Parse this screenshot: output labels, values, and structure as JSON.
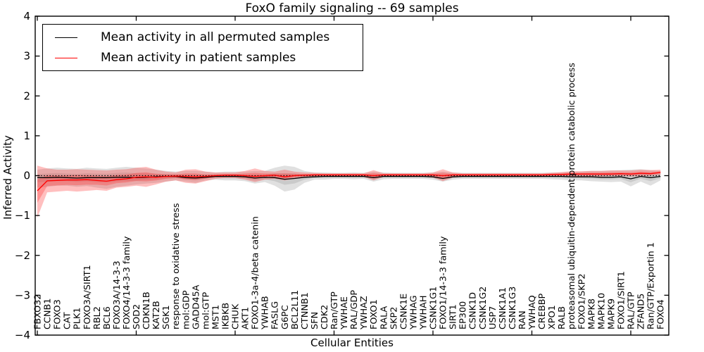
{
  "figure": {
    "title": "FoxO family signaling -- 69 samples",
    "xlabel": "Cellular Entities",
    "ylabel": "Inferred Activity"
  },
  "chart_data": {
    "type": "line",
    "title": "FoxO family signaling -- 69 samples",
    "xlabel": "Cellular Entities",
    "ylabel": "Inferred Activity",
    "ylim": [
      -4,
      4
    ],
    "yticks": [
      -4,
      -3,
      -2,
      -1,
      0,
      1,
      2,
      3,
      4
    ],
    "xtick_interval": 10,
    "grid": false,
    "legend_position": "upper left",
    "baseline": {
      "y": 0,
      "style": "dotted",
      "color": "#000000"
    },
    "categories": [
      "FBXO32",
      "CCNB1",
      "FOXO3",
      "CAT",
      "PLK1",
      "FOXO3A/SIRT1",
      "RBL2",
      "BCL6",
      "FOXO3A/14-3-3",
      "FOXO4/14-3-3 family",
      "SOD2",
      "CDKN1B",
      "KAT2B",
      "SGK1",
      "response to oxidative stress",
      "mol:GDP",
      "GADD45A",
      "mol:GTP",
      "MST1",
      "IKBKB",
      "CHUK",
      "AKT1",
      "FOXO1-3a-4/beta catenin",
      "YWHAB",
      "FASLG",
      "G6PC",
      "BCL2L11",
      "CTNNB1",
      "SFN",
      "CDK2",
      "Ran/GTP",
      "YWHAE",
      "RAL/GDP",
      "YWHAZ",
      "FOXO1",
      "RALA",
      "SKP2",
      "CSNK1E",
      "YWHAG",
      "YWHAH",
      "CSNK1G1",
      "FOXO1/14-3-3 family",
      "SIRT1",
      "EP300",
      "CSNK1D",
      "CSNK1G2",
      "USP7",
      "CSNK1A1",
      "CSNK1G3",
      "RAN",
      "YWHAQ",
      "CREBBP",
      "XPO1",
      "RALB",
      "proteasomal ubiquitin-dependent protein catabolic process",
      "FOXO1/SKP2",
      "MAPK8",
      "MAPK10",
      "MAPK9",
      "FOXO1/SIRT1",
      "RAL/GTP",
      "ZFAND5",
      "Ran/GTP/Exportin 1",
      "FOXO4"
    ],
    "series": [
      {
        "name": "Mean activity in all permuted samples",
        "color": "#000000",
        "band_color": "#999999",
        "values": [
          -0.05,
          -0.05,
          -0.04,
          -0.05,
          -0.06,
          -0.05,
          -0.05,
          -0.05,
          -0.04,
          -0.04,
          -0.05,
          -0.04,
          -0.03,
          -0.02,
          -0.02,
          -0.05,
          -0.06,
          -0.04,
          -0.02,
          -0.02,
          -0.02,
          -0.03,
          -0.06,
          -0.04,
          -0.05,
          -0.09,
          -0.07,
          -0.04,
          -0.03,
          -0.02,
          -0.02,
          -0.02,
          -0.02,
          -0.02,
          -0.05,
          -0.02,
          -0.02,
          -0.02,
          -0.02,
          -0.02,
          -0.03,
          -0.07,
          -0.03,
          -0.02,
          -0.02,
          -0.02,
          -0.02,
          -0.02,
          -0.02,
          -0.02,
          -0.02,
          -0.02,
          -0.02,
          -0.02,
          -0.03,
          -0.03,
          -0.03,
          -0.04,
          -0.04,
          -0.03,
          -0.08,
          -0.02,
          -0.05,
          -0.02
        ],
        "band_upper": [
          0.15,
          0.18,
          0.2,
          0.18,
          0.17,
          0.2,
          0.18,
          0.17,
          0.2,
          0.22,
          0.2,
          0.18,
          0.15,
          0.12,
          0.1,
          0.12,
          0.12,
          0.1,
          0.08,
          0.1,
          0.1,
          0.1,
          0.12,
          0.12,
          0.2,
          0.25,
          0.22,
          0.12,
          0.08,
          0.08,
          0.07,
          0.07,
          0.08,
          0.07,
          0.1,
          0.08,
          0.07,
          0.07,
          0.07,
          0.07,
          0.08,
          0.1,
          0.08,
          0.07,
          0.07,
          0.07,
          0.07,
          0.07,
          0.07,
          0.07,
          0.07,
          0.07,
          0.08,
          0.08,
          0.1,
          0.1,
          0.12,
          0.12,
          0.13,
          0.14,
          0.15,
          0.16,
          0.14,
          0.12
        ],
        "band_lower": [
          -0.3,
          -0.28,
          -0.25,
          -0.25,
          -0.28,
          -0.26,
          -0.3,
          -0.33,
          -0.28,
          -0.25,
          -0.22,
          -0.2,
          -0.18,
          -0.15,
          -0.12,
          -0.15,
          -0.18,
          -0.12,
          -0.1,
          -0.12,
          -0.12,
          -0.14,
          -0.2,
          -0.16,
          -0.25,
          -0.4,
          -0.35,
          -0.18,
          -0.1,
          -0.1,
          -0.08,
          -0.08,
          -0.09,
          -0.08,
          -0.15,
          -0.09,
          -0.08,
          -0.08,
          -0.08,
          -0.08,
          -0.1,
          -0.15,
          -0.1,
          -0.08,
          -0.08,
          -0.08,
          -0.08,
          -0.08,
          -0.08,
          -0.08,
          -0.08,
          -0.08,
          -0.09,
          -0.1,
          -0.12,
          -0.12,
          -0.14,
          -0.15,
          -0.16,
          -0.15,
          -0.27,
          -0.15,
          -0.25,
          -0.12
        ]
      },
      {
        "name": "Mean activity in patient samples",
        "color": "#ff0000",
        "band_color": "#ff2a2a",
        "values": [
          -0.38,
          -0.13,
          -0.12,
          -0.11,
          -0.11,
          -0.1,
          -0.12,
          -0.14,
          -0.1,
          -0.08,
          -0.04,
          -0.03,
          -0.04,
          -0.02,
          -0.01,
          -0.02,
          -0.03,
          -0.02,
          0.0,
          0.01,
          0.01,
          0.0,
          -0.02,
          0.0,
          0.01,
          -0.03,
          0.0,
          0.01,
          0.02,
          0.02,
          0.02,
          0.02,
          0.02,
          0.02,
          0.0,
          0.02,
          0.02,
          0.02,
          0.02,
          0.02,
          0.02,
          0.0,
          0.02,
          0.02,
          0.02,
          0.02,
          0.02,
          0.02,
          0.02,
          0.02,
          0.02,
          0.02,
          0.03,
          0.03,
          0.04,
          0.04,
          0.04,
          0.04,
          0.04,
          0.05,
          0.04,
          0.06,
          0.05,
          0.08
        ],
        "band_upper": [
          0.25,
          0.18,
          0.15,
          0.15,
          0.16,
          0.15,
          0.14,
          0.13,
          0.15,
          0.16,
          0.2,
          0.22,
          0.15,
          0.1,
          0.08,
          0.15,
          0.16,
          0.1,
          0.08,
          0.08,
          0.08,
          0.12,
          0.18,
          0.12,
          0.1,
          0.15,
          0.1,
          0.08,
          0.07,
          0.06,
          0.06,
          0.06,
          0.06,
          0.06,
          0.14,
          0.06,
          0.06,
          0.06,
          0.06,
          0.06,
          0.08,
          0.16,
          0.08,
          0.06,
          0.06,
          0.06,
          0.06,
          0.06,
          0.06,
          0.06,
          0.06,
          0.06,
          0.07,
          0.09,
          0.11,
          0.11,
          0.12,
          0.12,
          0.13,
          0.13,
          0.13,
          0.15,
          0.14,
          0.15
        ],
        "band_lower": [
          -1.05,
          -0.42,
          -0.4,
          -0.38,
          -0.4,
          -0.38,
          -0.36,
          -0.38,
          -0.3,
          -0.28,
          -0.25,
          -0.28,
          -0.22,
          -0.15,
          -0.12,
          -0.18,
          -0.2,
          -0.14,
          -0.08,
          -0.06,
          -0.06,
          -0.1,
          -0.16,
          -0.1,
          -0.08,
          -0.12,
          -0.08,
          -0.05,
          -0.04,
          -0.03,
          -0.03,
          -0.03,
          -0.03,
          -0.03,
          -0.12,
          -0.03,
          -0.03,
          -0.03,
          -0.03,
          -0.03,
          -0.05,
          -0.14,
          -0.05,
          -0.03,
          -0.03,
          -0.03,
          -0.03,
          -0.03,
          -0.03,
          -0.03,
          -0.03,
          -0.03,
          -0.02,
          -0.02,
          -0.02,
          -0.02,
          -0.02,
          -0.02,
          -0.01,
          -0.01,
          -0.02,
          -0.01,
          0.0,
          0.02
        ]
      }
    ]
  }
}
